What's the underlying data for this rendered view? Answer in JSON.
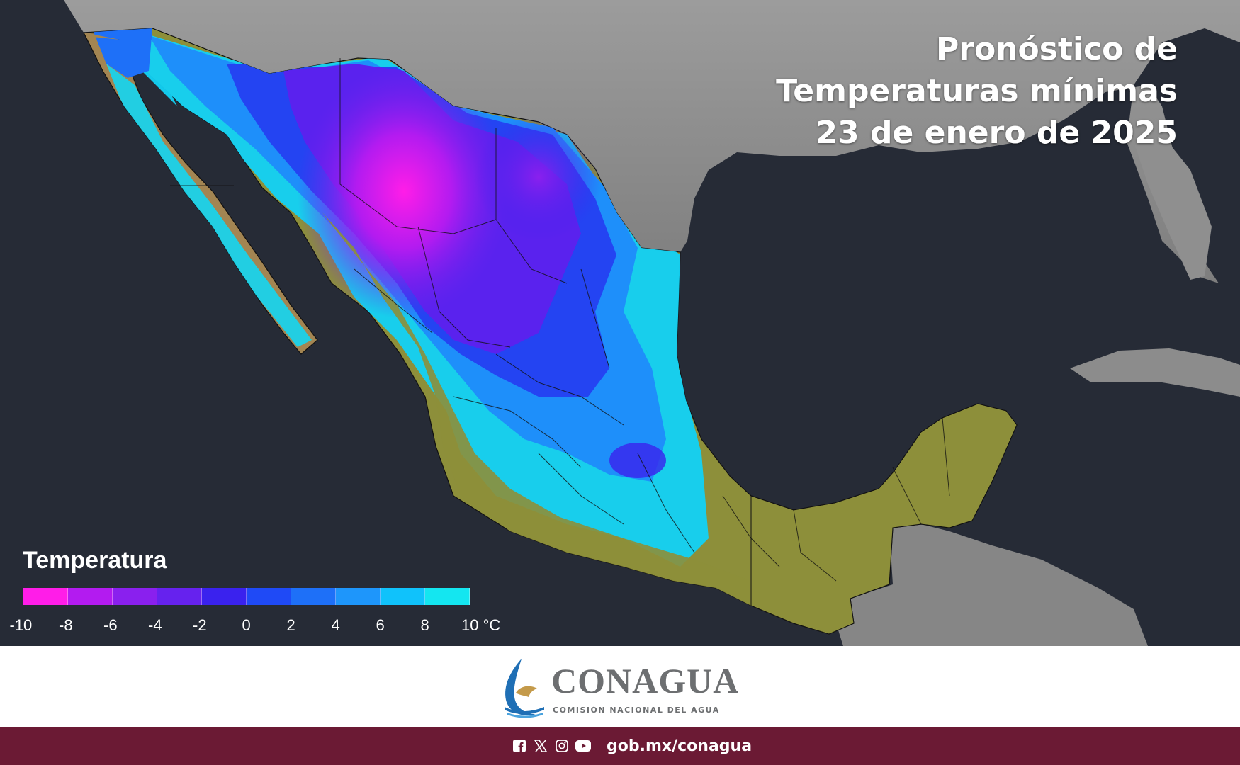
{
  "title": {
    "line1": "Pronóstico de",
    "line2": "Temperaturas mínimas",
    "line3": "23 de enero de 2025"
  },
  "legend": {
    "title": "Temperatura",
    "ticks": [
      "-10",
      "-8",
      "-6",
      "-4",
      "-2",
      "0",
      "2",
      "4",
      "6",
      "8",
      "10 °C"
    ],
    "colors": [
      "#ff1de8",
      "#b31bf0",
      "#8a20ee",
      "#6622ee",
      "#3a22ee",
      "#1f4af6",
      "#1e70f8",
      "#1e96fb",
      "#10c2fb",
      "#14e6f0"
    ]
  },
  "logo": {
    "name": "CONAGUA",
    "subtitle": "COMISIÓN NACIONAL DEL AGUA"
  },
  "footer": {
    "url": "gob.mx/conagua",
    "icons": [
      "facebook-icon",
      "x-icon",
      "instagram-icon",
      "youtube-icon"
    ]
  },
  "colors": {
    "ocean": "#262b36",
    "land_outside": "#8a8a8a",
    "land_warm": "#8d8f3a",
    "brand_bar": "#6b1a34"
  }
}
